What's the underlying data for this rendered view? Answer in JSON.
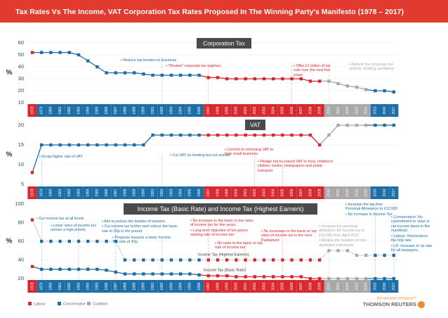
{
  "header": {
    "title": "Tax Rates Vs The Income, VAT Corporation Tax Rates Proposed In The Winning Party's Manifesto (1978 – 2017)"
  },
  "parties": [
    {
      "name": "Labour",
      "color": "#d7282f",
      "spans": [
        [
          "1978",
          "1978"
        ],
        [
          "1997",
          "2009"
        ]
      ]
    },
    {
      "name": "Conservative",
      "color": "#1d6ea6",
      "spans": [
        [
          "1979",
          "1996"
        ],
        [
          "2015",
          "2017"
        ]
      ]
    },
    {
      "name": "Coalition",
      "color": "#a8a8a8",
      "spans": [
        [
          "2010",
          "2014"
        ]
      ]
    }
  ],
  "chart_data": [
    {
      "type": "line",
      "title": "Corporation Tax",
      "ylabel": "%",
      "categories": [
        "1978",
        "1979",
        "1980",
        "1981",
        "1982",
        "1983",
        "1984",
        "1985",
        "1986",
        "1987",
        "1988",
        "1989",
        "1990",
        "1991",
        "1992",
        "1993",
        "1994",
        "1995",
        "1996",
        "1997",
        "1998",
        "1999",
        "2000",
        "2001",
        "2002",
        "2003",
        "2004",
        "2005",
        "2006",
        "2007",
        "2008",
        "2009",
        "2010",
        "2011",
        "2012",
        "2013",
        "2014",
        "2015",
        "2016",
        "2017"
      ],
      "series": [
        {
          "values": [
            52,
            52,
            52,
            52,
            52,
            50,
            45,
            40,
            35,
            35,
            35,
            35,
            34,
            33,
            33,
            33,
            33,
            33,
            33,
            31,
            31,
            30,
            30,
            30,
            30,
            30,
            30,
            30,
            30,
            30,
            28,
            28,
            28,
            26,
            24,
            23,
            21,
            20,
            20,
            19
          ]
        }
      ],
      "ylim": [
        10,
        60
      ],
      "yticks": [
        10,
        20,
        30,
        40,
        50,
        60
      ],
      "grid": true,
      "annotations": [
        [
          "• Reduce tax burden on business"
        ],
        [
          "• \"Review\" corporate tax regimes"
        ],
        [
          "• Offer £1 billion of tax cuts over the next five years"
        ],
        [
          "• Reform the corporate tax system, tackling avoidance"
        ]
      ]
    },
    {
      "type": "line",
      "title": "VAT",
      "ylabel": "%",
      "categories": [
        "1978",
        "1979",
        "1980",
        "1981",
        "1982",
        "1983",
        "1984",
        "1985",
        "1986",
        "1987",
        "1988",
        "1989",
        "1990",
        "1991",
        "1992",
        "1993",
        "1994",
        "1995",
        "1996",
        "1997",
        "1998",
        "1999",
        "2000",
        "2001",
        "2002",
        "2003",
        "2004",
        "2005",
        "2006",
        "2007",
        "2008",
        "2009",
        "2010",
        "2011",
        "2012",
        "2013",
        "2014",
        "2015",
        "2016",
        "2017"
      ],
      "series": [
        {
          "values": [
            8,
            15,
            15,
            15,
            15,
            15,
            15,
            15,
            15,
            15,
            15,
            15,
            15,
            17.5,
            17.5,
            17.5,
            17.5,
            17.5,
            17.5,
            17.5,
            17.5,
            17.5,
            17.5,
            17.5,
            17.5,
            17.5,
            17.5,
            17.5,
            17.5,
            17.5,
            17.5,
            15,
            17.5,
            20,
            20,
            20,
            20,
            20,
            20,
            20
          ]
        }
      ],
      "ylim": [
        5,
        20
      ],
      "yticks": [
        5,
        10,
        15,
        20
      ],
      "grid": true,
      "annotations": [
        [
          "• Scrap higher rate of VAT"
        ],
        [
          "• Cut VAT on heating but not overall"
        ],
        [
          "• Commit to reforming VAT to help small business"
        ],
        [
          "• Pledge not to extend VAT to food, children's clothes, books, newspapers and public transport"
        ]
      ]
    },
    {
      "type": "line",
      "title": "Income Tax (Basic Rate) and Income Tax (Highest Earners)",
      "ylabel": "%",
      "categories": [
        "1978",
        "1979",
        "1980",
        "1981",
        "1982",
        "1983",
        "1984",
        "1985",
        "1986",
        "1987",
        "1988",
        "1989",
        "1990",
        "1991",
        "1992",
        "1993",
        "1994",
        "1995",
        "1996",
        "1997",
        "1998",
        "1999",
        "2000",
        "2001",
        "2002",
        "2003",
        "2004",
        "2005",
        "2006",
        "2007",
        "2008",
        "2009",
        "2010",
        "2011",
        "2012",
        "2013",
        "2014",
        "2015",
        "2016",
        "2017"
      ],
      "series": [
        {
          "name": "Income Tax (Highest Earners)",
          "line_color": "#a9c3d8",
          "dashed": true,
          "values": [
            83,
            60,
            60,
            60,
            60,
            60,
            60,
            60,
            60,
            60,
            40,
            40,
            40,
            40,
            40,
            40,
            40,
            40,
            40,
            40,
            40,
            40,
            40,
            40,
            40,
            40,
            40,
            40,
            40,
            40,
            40,
            40,
            50,
            50,
            50,
            45,
            45,
            45,
            45,
            45
          ]
        },
        {
          "name": "Income Tax (Basic Rate)",
          "values": [
            33,
            30,
            30,
            30,
            30,
            30,
            30,
            30,
            29,
            27,
            25,
            25,
            25,
            25,
            25,
            25,
            25,
            25,
            24,
            23,
            23,
            23,
            22,
            22,
            22,
            22,
            22,
            22,
            22,
            22,
            20,
            20,
            20,
            20,
            20,
            20,
            20,
            20,
            20,
            20
          ]
        }
      ],
      "ylim": [
        20,
        100
      ],
      "yticks": [
        20,
        40,
        60,
        80,
        100
      ],
      "grid": true,
      "annotations": [
        [
          "• Cut income tax at all levels"
        ],
        [
          "• Lower rates of income tax remain a high priority"
        ],
        [
          "• Aim to reduce the burden of taxation",
          "• Cut income tax further and reduce the basic rate to 20p in the pound."
        ],
        [
          "• Progress towards a basic Income Tax rate of 20p."
        ],
        [
          "• No increase in the basic or top rates of income tax for five years.",
          "• Long-term objective of ten pence starting rate of income tax."
        ],
        [
          "• No raise to the basic or top rate of Income tax"
        ],
        [
          "• No increases in the basic or top rates of income tax in the next Parliament"
        ],
        [
          "• Increase the personal allowance for income tax to £10,000 from April 2011.",
          "• Review the taxation of non-domiciled individuals."
        ],
        [
          "• Increase the tax-free Personal Allowance to £12,500",
          "• No increase in Income Tax"
        ],
        [
          "• Conservative: No commitment to raise or cut income taxes in the manifesto",
          "• Labour: Reintroduce the 50p rate",
          "• LD: Increase to 1p rate for all taxpayers."
        ]
      ]
    }
  ],
  "footer": {
    "tagline": "the answer company™",
    "brand": "THOMSON REUTERS"
  }
}
